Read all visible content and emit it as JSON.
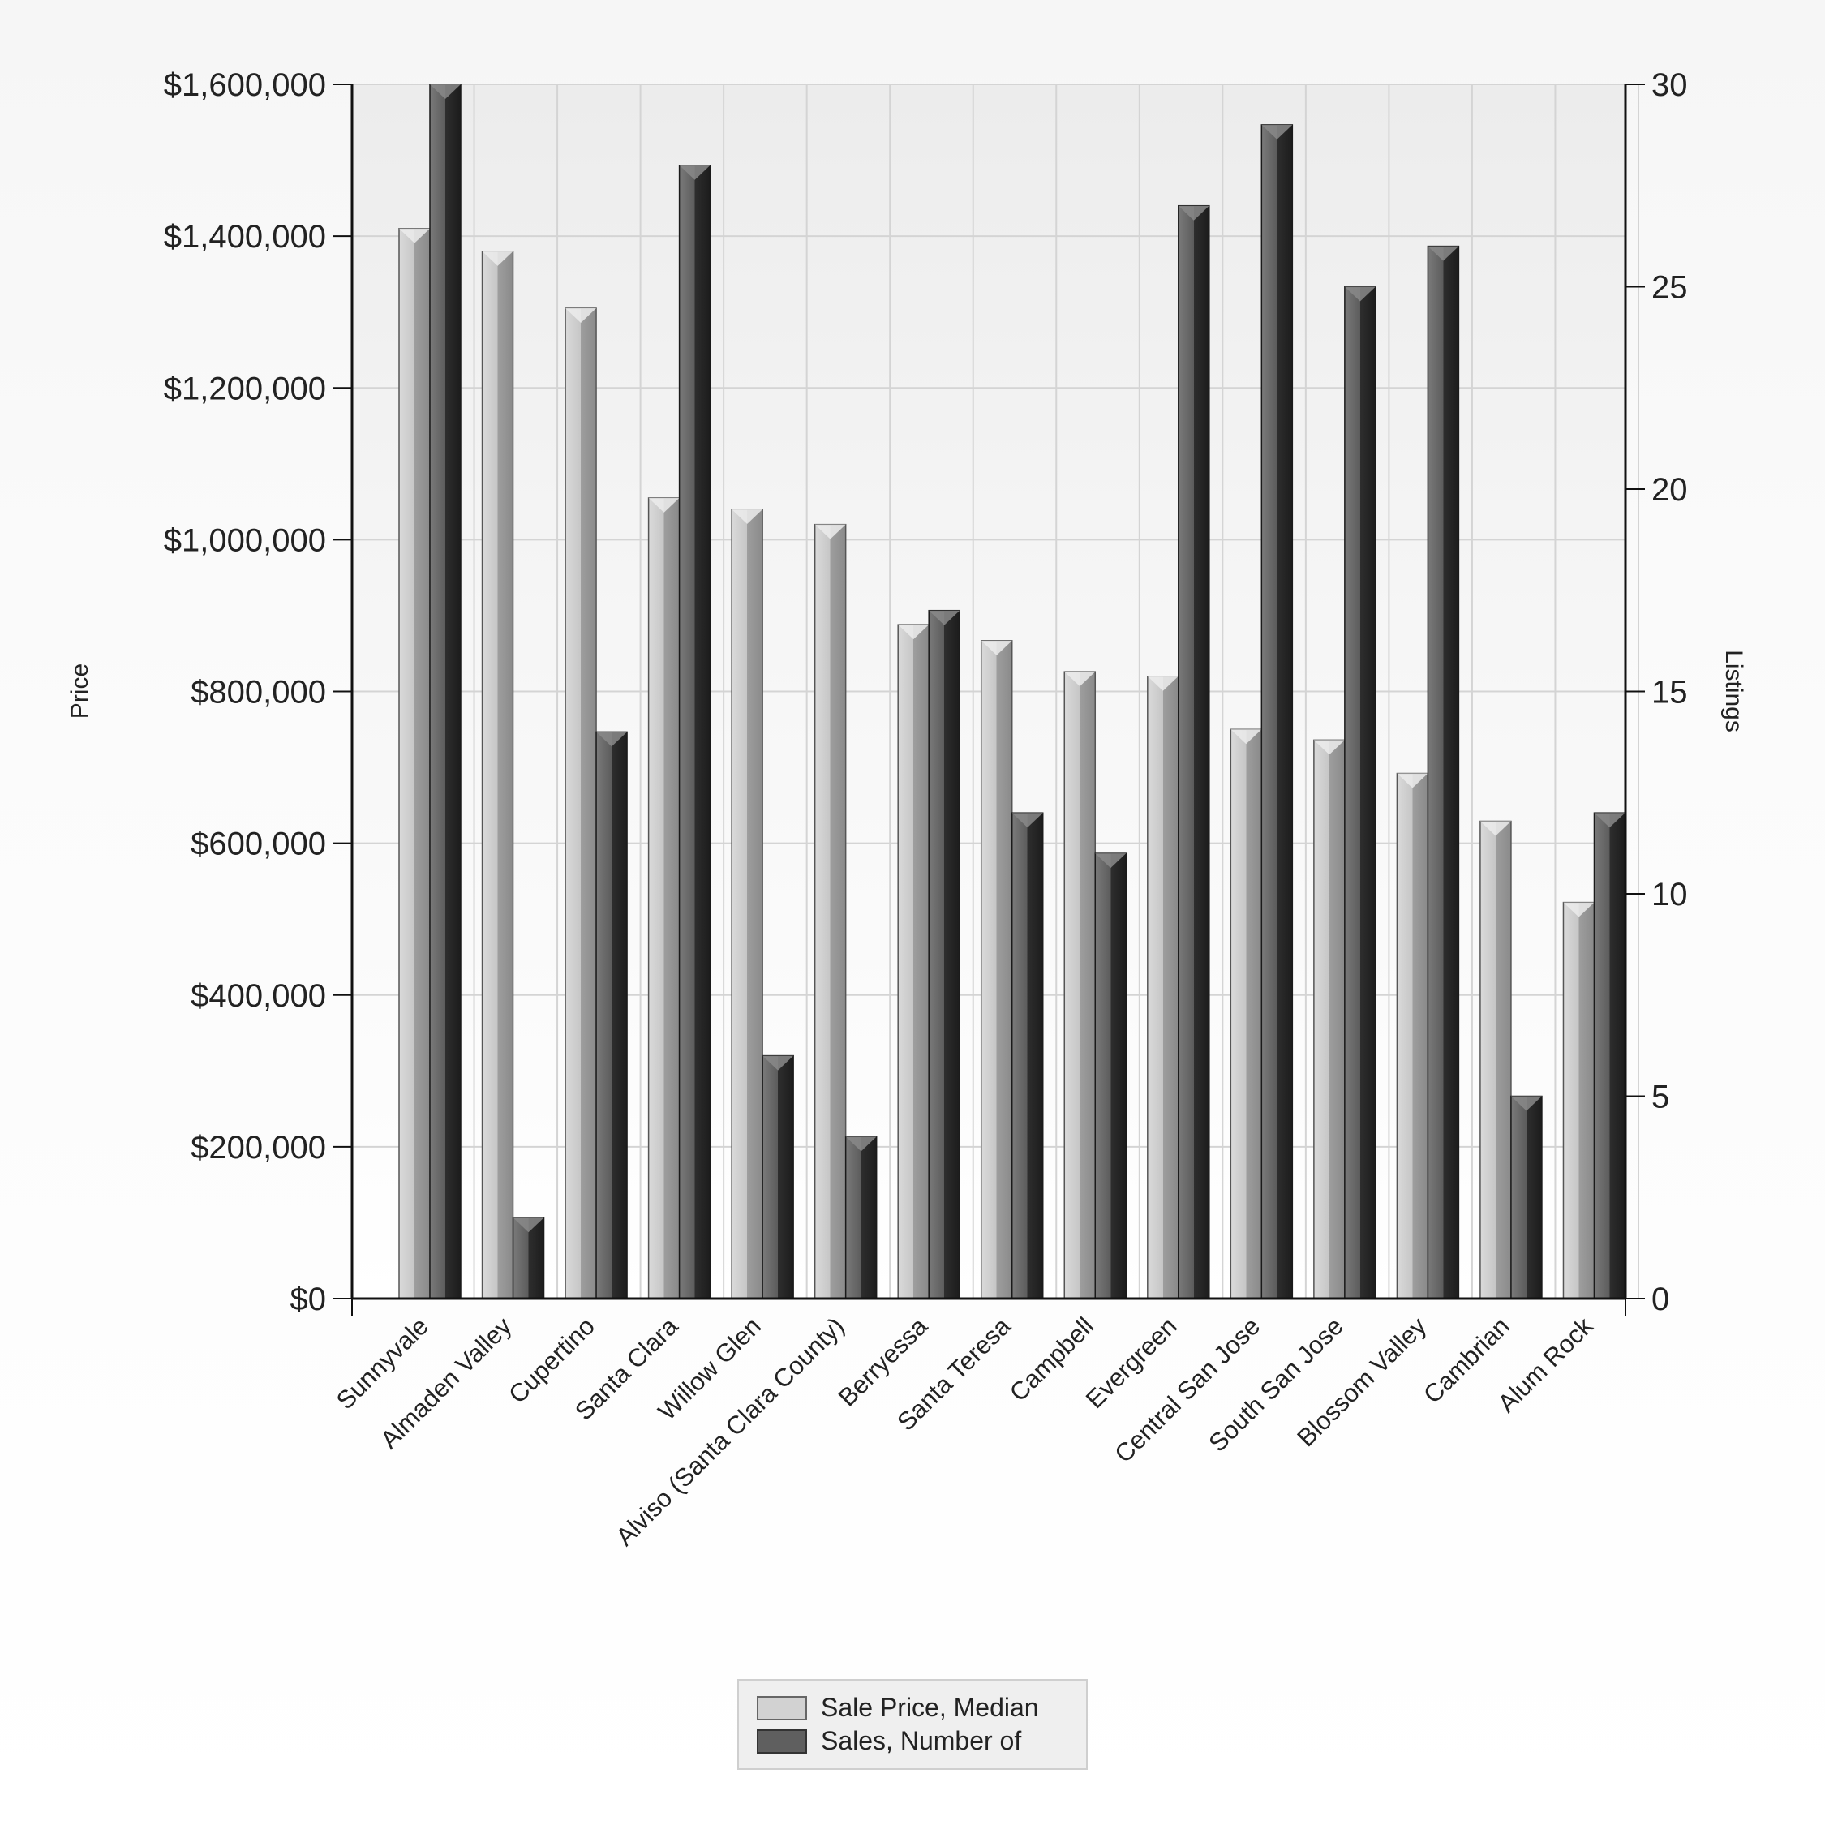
{
  "chart_data": {
    "type": "bar",
    "categories": [
      "Sunnyvale",
      "Almaden Valley",
      "Cupertino",
      "Santa Clara",
      "Willow Glen",
      "Alviso (Santa Clara County)",
      "Berryessa",
      "Santa Teresa",
      "Campbell",
      "Evergreen",
      "Central San Jose",
      "South San Jose",
      "Blossom Valley",
      "Cambrian",
      "Alum Rock"
    ],
    "series": [
      {
        "name": "Sale Price, Median",
        "axis": "left",
        "color": "#d2d2d2",
        "values": [
          1410000,
          1380000,
          1305000,
          1055000,
          1040000,
          1020000,
          888000,
          867000,
          826000,
          820000,
          750000,
          736000,
          692000,
          629000,
          522000
        ]
      },
      {
        "name": "Sales, Number of",
        "axis": "right",
        "color": "#5f5f5f",
        "values": [
          30,
          2,
          14,
          28,
          6,
          4,
          17,
          12,
          11,
          27,
          29,
          25,
          26,
          5,
          12
        ]
      }
    ],
    "ylabel": "Price",
    "y2label": "Listings",
    "ylim": [
      0,
      1600000
    ],
    "y2lim": [
      0,
      30
    ],
    "yticks": [
      "$0",
      "$200,000",
      "$400,000",
      "$600,000",
      "$800,000",
      "$1,000,000",
      "$1,200,000",
      "$1,400,000",
      "$1,600,000"
    ],
    "y2ticks": [
      "0",
      "5",
      "10",
      "15",
      "20",
      "25",
      "30"
    ],
    "grid": true,
    "legend_position": "bottom-center"
  }
}
